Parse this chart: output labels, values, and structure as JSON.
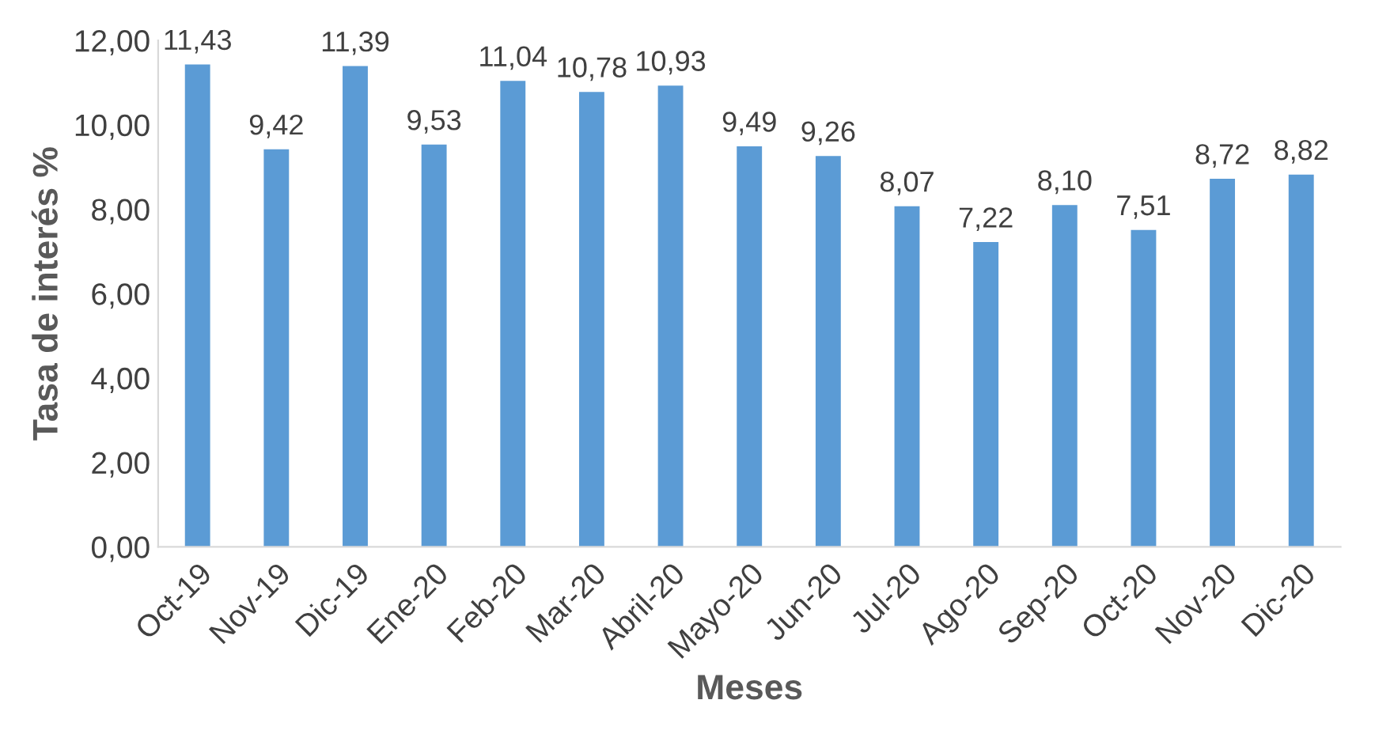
{
  "chart_data": {
    "type": "bar",
    "xlabel": "Meses",
    "ylabel": "Tasa de interés %",
    "categories": [
      "Oct-19",
      "Nov-19",
      "Dic-19",
      "Ene-20",
      "Feb-20",
      "Mar-20",
      "Abril-20",
      "Mayo-20",
      "Jun-20",
      "Jul-20",
      "Ago-20",
      "Sep-20",
      "Oct-20",
      "Nov-20",
      "Dic-20"
    ],
    "values": [
      11.43,
      9.42,
      11.39,
      9.53,
      11.04,
      10.78,
      10.93,
      9.49,
      9.26,
      8.07,
      7.22,
      8.1,
      7.51,
      8.72,
      8.82
    ],
    "value_labels": [
      "11,43",
      "9,42",
      "11,39",
      "9,53",
      "11,04",
      "10,78",
      "10,93",
      "9,49",
      "9,26",
      "8,07",
      "7,22",
      "8,10",
      "7,51",
      "8,72",
      "8,82"
    ],
    "color": "#5b9bd5",
    "ylim": [
      0,
      12
    ],
    "yticks": [
      {
        "value": 0,
        "label": "0,00"
      },
      {
        "value": 2,
        "label": "2,00"
      },
      {
        "value": 4,
        "label": "4,00"
      },
      {
        "value": 6,
        "label": "6,00"
      },
      {
        "value": 8,
        "label": "8,00"
      },
      {
        "value": 10,
        "label": "10,00"
      },
      {
        "value": 12,
        "label": "12,00"
      }
    ],
    "grid": false,
    "legend": false
  }
}
